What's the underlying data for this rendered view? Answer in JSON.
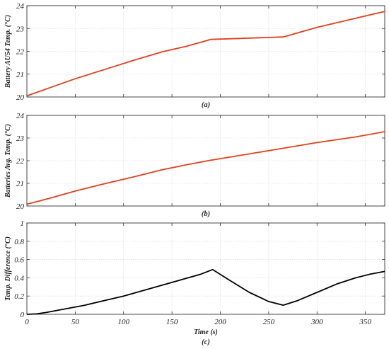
{
  "chart_data": [
    {
      "type": "line",
      "caption": "(a)",
      "xlabel": "",
      "ylabel": "Battery AU54 Temp. (°C)",
      "xlim": [
        0,
        370
      ],
      "ylim": [
        20,
        24
      ],
      "xticks": [
        0,
        50,
        100,
        150,
        200,
        250,
        300,
        350
      ],
      "yticks": [
        20,
        21,
        22,
        23,
        24
      ],
      "show_xtick_labels": false,
      "grid": true,
      "series": [
        {
          "color": "#e2401c",
          "x": [
            0,
            20,
            50,
            80,
            110,
            140,
            165,
            190,
            230,
            265,
            300,
            340,
            370
          ],
          "y": [
            20.05,
            20.35,
            20.8,
            21.2,
            21.6,
            21.98,
            22.22,
            22.52,
            22.58,
            22.63,
            23.05,
            23.45,
            23.75
          ]
        }
      ]
    },
    {
      "type": "line",
      "caption": "(b)",
      "xlabel": "",
      "ylabel": "Batteries Avg. Temp. (°C)",
      "xlim": [
        0,
        370
      ],
      "ylim": [
        20,
        24
      ],
      "xticks": [
        0,
        50,
        100,
        150,
        200,
        250,
        300,
        350
      ],
      "yticks": [
        20,
        21,
        22,
        23,
        24
      ],
      "show_xtick_labels": false,
      "grid": true,
      "series": [
        {
          "color": "#e2401c",
          "x": [
            0,
            20,
            50,
            80,
            110,
            140,
            165,
            190,
            230,
            265,
            300,
            340,
            370
          ],
          "y": [
            20.08,
            20.3,
            20.66,
            20.98,
            21.28,
            21.6,
            21.82,
            22.02,
            22.3,
            22.55,
            22.8,
            23.05,
            23.28
          ]
        }
      ]
    },
    {
      "type": "line",
      "caption": "(c)",
      "xlabel": "Time (s)",
      "ylabel": "Temp. Difference (°C)",
      "xlim": [
        0,
        370
      ],
      "ylim": [
        0,
        1
      ],
      "xticks": [
        0,
        50,
        100,
        150,
        200,
        250,
        300,
        350
      ],
      "yticks": [
        0,
        0.2,
        0.4,
        0.6,
        0.8,
        1
      ],
      "show_xtick_labels": true,
      "grid": true,
      "series": [
        {
          "color": "#000000",
          "x": [
            0,
            10,
            20,
            40,
            60,
            80,
            100,
            120,
            140,
            160,
            180,
            192,
            210,
            230,
            250,
            265,
            280,
            300,
            320,
            340,
            355,
            370
          ],
          "y": [
            0,
            0.005,
            0.02,
            0.06,
            0.1,
            0.15,
            0.2,
            0.26,
            0.32,
            0.38,
            0.44,
            0.49,
            0.37,
            0.24,
            0.14,
            0.1,
            0.15,
            0.24,
            0.33,
            0.4,
            0.44,
            0.47
          ]
        }
      ]
    }
  ]
}
